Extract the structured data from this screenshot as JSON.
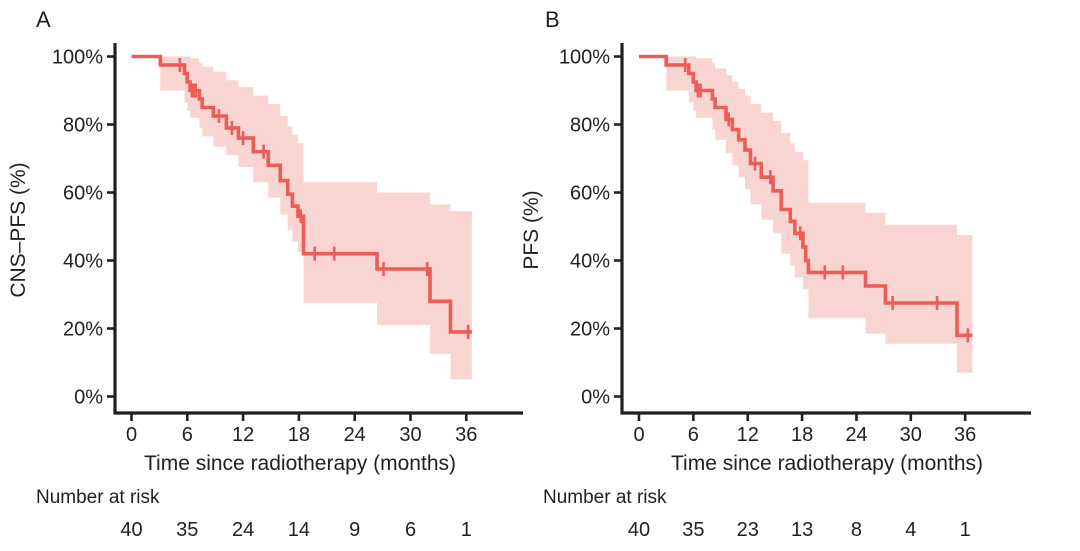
{
  "chart_data": [
    {
      "type": "line",
      "subtype": "kaplan-meier-step",
      "panel_label": "A",
      "title": "",
      "xlabel": "Time since radiotherapy (months)",
      "ylabel": "CNS–PFS (%)",
      "xlim": [
        0,
        38
      ],
      "ylim": [
        0,
        100
      ],
      "grid": false,
      "legend": "none",
      "x_ticks": [
        0,
        6,
        12,
        18,
        24,
        30,
        36
      ],
      "y_tick_values": [
        0,
        20,
        40,
        60,
        80,
        100
      ],
      "y_tick_labels": [
        "0%",
        "20%",
        "40%",
        "60%",
        "80%",
        "100%"
      ],
      "line_color": "#ea5d58",
      "band_color": "#f9d5d2",
      "axis_color": "#231f20",
      "steps": [
        [
          0,
          100
        ],
        [
          3.1,
          97.5
        ],
        [
          5.7,
          95
        ],
        [
          6,
          92.5
        ],
        [
          6.3,
          90
        ],
        [
          7.3,
          87.5
        ],
        [
          7.6,
          85
        ],
        [
          8.8,
          82.5
        ],
        [
          10.2,
          79
        ],
        [
          11.5,
          76
        ],
        [
          13.1,
          72
        ],
        [
          14.7,
          68
        ],
        [
          16,
          63.5
        ],
        [
          16.8,
          59.5
        ],
        [
          17.3,
          56
        ],
        [
          17.9,
          53
        ],
        [
          18.5,
          42
        ],
        [
          26.4,
          37.5
        ],
        [
          32.1,
          28
        ],
        [
          34.3,
          19
        ]
      ],
      "end_time": 36.6,
      "censor_marks": [
        [
          5.2,
          97.5
        ],
        [
          6.5,
          90
        ],
        [
          6.7,
          90
        ],
        [
          6.9,
          90
        ],
        [
          9.4,
          82.5
        ],
        [
          10.8,
          79
        ],
        [
          12,
          76
        ],
        [
          14.2,
          72
        ],
        [
          18.2,
          53
        ],
        [
          19.7,
          42
        ],
        [
          21.8,
          42
        ],
        [
          27.1,
          37.5
        ],
        [
          31.8,
          37.5
        ],
        [
          36.2,
          19
        ]
      ],
      "confidence_band": [
        [
          3.1,
          90,
          100
        ],
        [
          5.7,
          86.5,
          100
        ],
        [
          6,
          84,
          100
        ],
        [
          6.3,
          82,
          99.5
        ],
        [
          7.3,
          79,
          98
        ],
        [
          7.6,
          76.5,
          97
        ],
        [
          8.8,
          73.5,
          95.5
        ],
        [
          10.2,
          71,
          93
        ],
        [
          11.5,
          67.5,
          91
        ],
        [
          13.1,
          63,
          88.5
        ],
        [
          14.7,
          58.5,
          86
        ],
        [
          16,
          53.5,
          82.5
        ],
        [
          16.8,
          49,
          79.5
        ],
        [
          17.3,
          45.5,
          77
        ],
        [
          17.9,
          42.5,
          74.5
        ],
        [
          18.5,
          27.5,
          63
        ],
        [
          26.4,
          21,
          60
        ],
        [
          32.1,
          12.5,
          56.5
        ],
        [
          34.3,
          5,
          54.5
        ]
      ],
      "number_at_risk": {
        "label": "Number at risk",
        "times": [
          0,
          6,
          12,
          18,
          24,
          30,
          36
        ],
        "values": [
          40,
          35,
          24,
          14,
          9,
          6,
          1
        ]
      }
    },
    {
      "type": "line",
      "subtype": "kaplan-meier-step",
      "panel_label": "B",
      "title": "",
      "xlabel": "Time since radiotherapy (months)",
      "ylabel": "PFS (%)",
      "xlim": [
        0,
        38
      ],
      "ylim": [
        0,
        100
      ],
      "grid": false,
      "legend": "none",
      "x_ticks": [
        0,
        6,
        12,
        18,
        24,
        30,
        36
      ],
      "y_tick_values": [
        0,
        20,
        40,
        60,
        80,
        100
      ],
      "y_tick_labels": [
        "0%",
        "20%",
        "40%",
        "60%",
        "80%",
        "100%"
      ],
      "line_color": "#ea5d58",
      "band_color": "#f9d5d2",
      "axis_color": "#231f20",
      "steps": [
        [
          0,
          100
        ],
        [
          3,
          97.5
        ],
        [
          5.5,
          95
        ],
        [
          6,
          92.5
        ],
        [
          6.3,
          90
        ],
        [
          8.1,
          87.5
        ],
        [
          8.4,
          85
        ],
        [
          9.6,
          81.5
        ],
        [
          10.3,
          78.5
        ],
        [
          11,
          75.5
        ],
        [
          11.7,
          72.5
        ],
        [
          12.3,
          68.5
        ],
        [
          13.5,
          64.5
        ],
        [
          14.8,
          60.5
        ],
        [
          15.7,
          55
        ],
        [
          16.7,
          51.5
        ],
        [
          17.2,
          48
        ],
        [
          18.1,
          44
        ],
        [
          18.4,
          40
        ],
        [
          18.7,
          36.5
        ],
        [
          25,
          32.5
        ],
        [
          27.2,
          27.5
        ],
        [
          35.1,
          18
        ]
      ],
      "end_time": 36.8,
      "censor_marks": [
        [
          5.1,
          97.5
        ],
        [
          6.5,
          90
        ],
        [
          6.8,
          90
        ],
        [
          9.9,
          81.5
        ],
        [
          12.8,
          68.5
        ],
        [
          14.5,
          64.5
        ],
        [
          17.8,
          48
        ],
        [
          20.5,
          36.5
        ],
        [
          22.5,
          36.5
        ],
        [
          28,
          27.5
        ],
        [
          32.9,
          27.5
        ],
        [
          36.3,
          18
        ]
      ],
      "confidence_band": [
        [
          3,
          90,
          100
        ],
        [
          5.5,
          86.5,
          100
        ],
        [
          6,
          84,
          100
        ],
        [
          6.3,
          82,
          99.5
        ],
        [
          8.1,
          78.5,
          98
        ],
        [
          8.4,
          75.5,
          96.5
        ],
        [
          9.6,
          71.5,
          94.5
        ],
        [
          10.3,
          68,
          92.5
        ],
        [
          11,
          64.5,
          90.5
        ],
        [
          11.7,
          61,
          88.5
        ],
        [
          12.3,
          56.5,
          86
        ],
        [
          13.5,
          52,
          83.5
        ],
        [
          14.8,
          48,
          81
        ],
        [
          15.7,
          42,
          77.5
        ],
        [
          16.7,
          38.5,
          74.5
        ],
        [
          17.2,
          35,
          72
        ],
        [
          18.1,
          31.5,
          69.5
        ],
        [
          18.7,
          23,
          57
        ],
        [
          25,
          18.5,
          54
        ],
        [
          27.2,
          15.5,
          50.5
        ],
        [
          35.1,
          7,
          47.5
        ]
      ],
      "number_at_risk": {
        "label": "Number at risk",
        "times": [
          0,
          6,
          12,
          18,
          24,
          30,
          36
        ],
        "values": [
          40,
          35,
          23,
          13,
          8,
          4,
          1
        ]
      }
    }
  ]
}
